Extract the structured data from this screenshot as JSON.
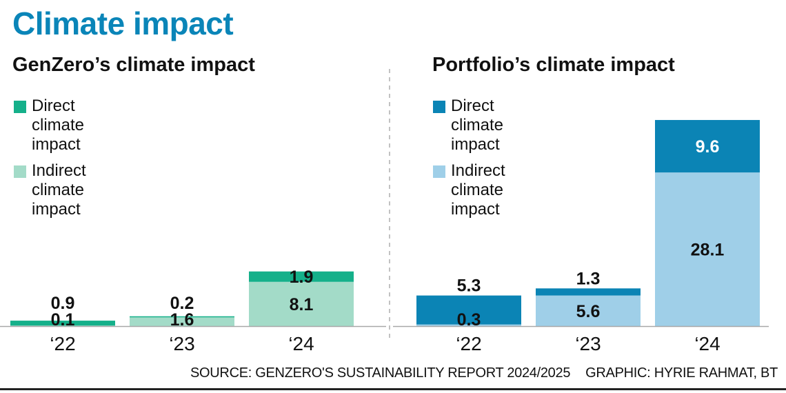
{
  "header": {
    "title": "Climate impact"
  },
  "footer": {
    "source": "SOURCE: GENZERO'S SUSTAINABILITY REPORT 2024/2025",
    "credit": "GRAPHIC: HYRIE RAHMAT, BT"
  },
  "colors": {
    "title": "#0a85b8",
    "genzero_direct": "#15b08a",
    "genzero_indirect": "#a3dbc8",
    "portfolio_direct": "#0b84b5",
    "portfolio_indirect": "#9fcfe8"
  },
  "chart_data": [
    {
      "type": "bar",
      "stacked": true,
      "title": "GenZero’s climate impact",
      "xlabel": "",
      "ylabel": "",
      "grid": false,
      "legend_position": "top-left",
      "categories": [
        "‘22",
        "‘23",
        "‘24"
      ],
      "series": [
        {
          "name": "Indirect climate impact",
          "values": [
            0.1,
            1.6,
            8.1
          ]
        },
        {
          "name": "Direct climate impact",
          "values": [
            0.9,
            0.2,
            1.9
          ]
        }
      ],
      "legend": [
        "Direct climate impact",
        "Indirect climate impact"
      ]
    },
    {
      "type": "bar",
      "stacked": true,
      "title": "Portfolio’s climate impact",
      "xlabel": "",
      "ylabel": "",
      "grid": false,
      "legend_position": "top-left",
      "categories": [
        "‘22",
        "‘23",
        "‘24"
      ],
      "series": [
        {
          "name": "Indirect climate impact",
          "values": [
            0.3,
            5.6,
            28.1
          ]
        },
        {
          "name": "Direct climate impact",
          "values": [
            5.3,
            1.3,
            9.6
          ]
        }
      ],
      "legend": [
        "Direct climate impact",
        "Indirect climate impact"
      ]
    }
  ]
}
